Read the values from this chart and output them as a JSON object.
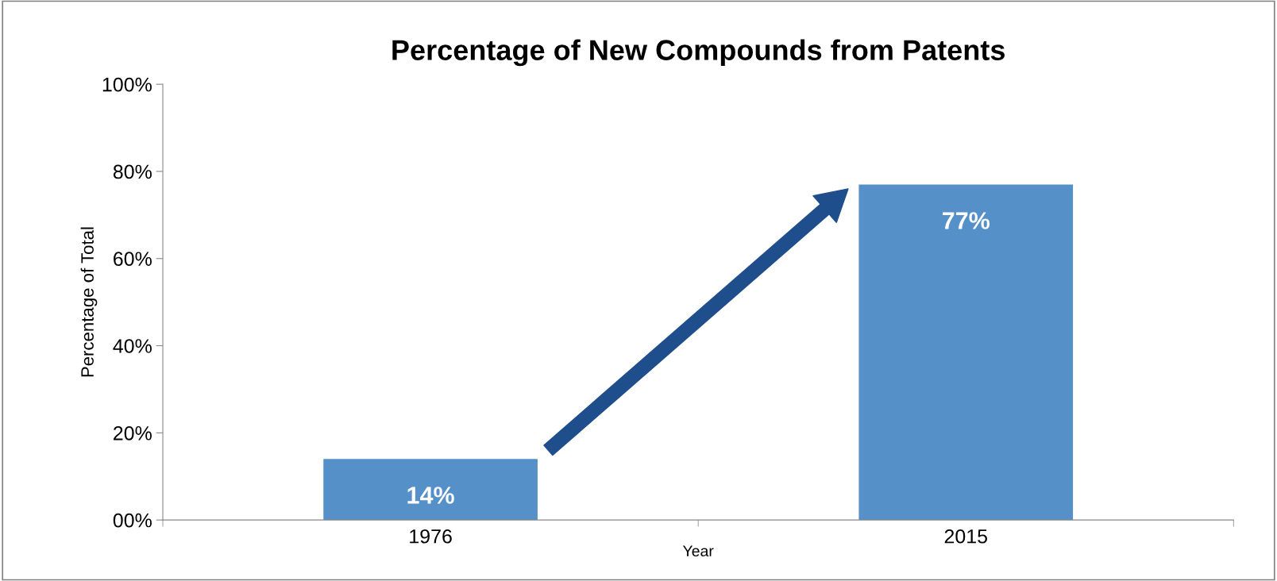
{
  "chart_data": {
    "type": "bar",
    "title": "Percentage of New Compounds from Patents",
    "xlabel": "Year",
    "ylabel": "Percentage of Total",
    "categories": [
      "1976",
      "2015"
    ],
    "values": [
      14,
      77
    ],
    "value_labels": [
      "14%",
      "77%"
    ],
    "color": "#5590c8",
    "ylim": [
      0,
      100
    ],
    "yticks": [
      {
        "value": 0,
        "label": "00%"
      },
      {
        "value": 20,
        "label": "20%"
      },
      {
        "value": 40,
        "label": "40%"
      },
      {
        "value": 60,
        "label": "60%"
      },
      {
        "value": 80,
        "label": "80%"
      },
      {
        "value": 100,
        "label": "100%"
      }
    ],
    "grid": false,
    "legend": false
  }
}
